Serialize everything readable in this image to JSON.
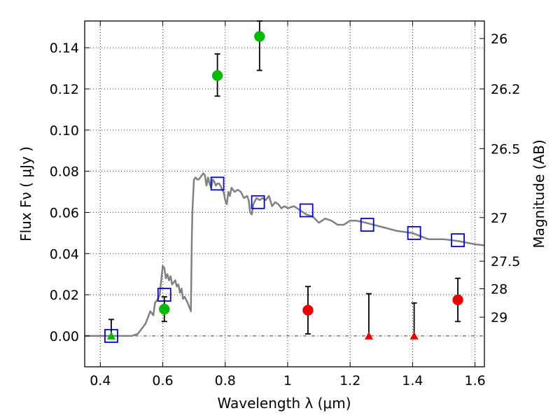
{
  "chart_data": {
    "type": "scatter",
    "title": "",
    "xlabel": "Wavelength  λ (μm)",
    "ylabel": "Flux  Fν  ( μJy )",
    "y2label": "Magnitude (AB)",
    "xlim": [
      0.35,
      1.63
    ],
    "ylim": [
      -0.015,
      0.153
    ],
    "grid": true,
    "grid_style": "dotted",
    "xticks": [
      {
        "value": 0.4,
        "label": "0.4"
      },
      {
        "value": 0.6,
        "label": "0.6"
      },
      {
        "value": 0.8,
        "label": "0.8"
      },
      {
        "value": 1.0,
        "label": "1"
      },
      {
        "value": 1.2,
        "label": "1.2"
      },
      {
        "value": 1.4,
        "label": "1.4"
      },
      {
        "value": 1.6,
        "label": "1.6"
      }
    ],
    "yticks": [
      {
        "value": 0.0,
        "label": "0.00"
      },
      {
        "value": 0.02,
        "label": "0.02"
      },
      {
        "value": 0.04,
        "label": "0.04"
      },
      {
        "value": 0.06,
        "label": "0.06"
      },
      {
        "value": 0.08,
        "label": "0.08"
      },
      {
        "value": 0.1,
        "label": "0.10"
      },
      {
        "value": 0.12,
        "label": "0.12"
      },
      {
        "value": 0.14,
        "label": "0.14"
      }
    ],
    "y2ticks": [
      {
        "flux": 0.1445,
        "label": "26"
      },
      {
        "flux": 0.12,
        "label": "26.2"
      },
      {
        "flux": 0.091,
        "label": "26.5"
      },
      {
        "flux": 0.0575,
        "label": "27"
      },
      {
        "flux": 0.0363,
        "label": "27.5"
      },
      {
        "flux": 0.0229,
        "label": "28"
      },
      {
        "flux": 0.0091,
        "label": "29"
      }
    ],
    "series": [
      {
        "marker": "line",
        "color": "#808080",
        "points": [
          [
            0.35,
            0.0
          ],
          [
            0.5,
            0.0
          ],
          [
            0.52,
            0.001
          ],
          [
            0.545,
            0.006
          ],
          [
            0.56,
            0.012
          ],
          [
            0.57,
            0.01
          ],
          [
            0.575,
            0.016
          ],
          [
            0.585,
            0.018
          ],
          [
            0.59,
            0.02
          ],
          [
            0.595,
            0.027
          ],
          [
            0.6,
            0.034
          ],
          [
            0.605,
            0.033
          ],
          [
            0.61,
            0.028
          ],
          [
            0.615,
            0.03
          ],
          [
            0.62,
            0.027
          ],
          [
            0.625,
            0.029
          ],
          [
            0.63,
            0.025
          ],
          [
            0.64,
            0.027
          ],
          [
            0.645,
            0.024
          ],
          [
            0.65,
            0.025
          ],
          [
            0.655,
            0.021
          ],
          [
            0.66,
            0.023
          ],
          [
            0.665,
            0.018
          ],
          [
            0.67,
            0.019
          ],
          [
            0.68,
            0.016
          ],
          [
            0.69,
            0.012
          ],
          [
            0.693,
            0.047
          ],
          [
            0.695,
            0.061
          ],
          [
            0.7,
            0.076
          ],
          [
            0.705,
            0.077
          ],
          [
            0.71,
            0.076
          ],
          [
            0.715,
            0.076
          ],
          [
            0.72,
            0.077
          ],
          [
            0.725,
            0.078
          ],
          [
            0.73,
            0.079
          ],
          [
            0.735,
            0.078
          ],
          [
            0.74,
            0.073
          ],
          [
            0.745,
            0.077
          ],
          [
            0.75,
            0.074
          ],
          [
            0.755,
            0.072
          ],
          [
            0.76,
            0.076
          ],
          [
            0.765,
            0.075
          ],
          [
            0.77,
            0.073
          ],
          [
            0.775,
            0.074
          ],
          [
            0.78,
            0.074
          ],
          [
            0.785,
            0.073
          ],
          [
            0.79,
            0.071
          ],
          [
            0.795,
            0.07
          ],
          [
            0.8,
            0.066
          ],
          [
            0.805,
            0.064
          ],
          [
            0.81,
            0.07
          ],
          [
            0.815,
            0.068
          ],
          [
            0.82,
            0.072
          ],
          [
            0.83,
            0.07
          ],
          [
            0.84,
            0.071
          ],
          [
            0.85,
            0.07
          ],
          [
            0.86,
            0.067
          ],
          [
            0.87,
            0.068
          ],
          [
            0.875,
            0.066
          ],
          [
            0.88,
            0.06
          ],
          [
            0.885,
            0.059
          ],
          [
            0.89,
            0.064
          ],
          [
            0.9,
            0.067
          ],
          [
            0.91,
            0.066
          ],
          [
            0.92,
            0.067
          ],
          [
            0.93,
            0.066
          ],
          [
            0.94,
            0.068
          ],
          [
            0.95,
            0.063
          ],
          [
            0.96,
            0.065
          ],
          [
            0.97,
            0.064
          ],
          [
            0.98,
            0.062
          ],
          [
            0.99,
            0.063
          ],
          [
            1.0,
            0.062
          ],
          [
            1.02,
            0.063
          ],
          [
            1.04,
            0.061
          ],
          [
            1.06,
            0.059
          ],
          [
            1.08,
            0.058
          ],
          [
            1.1,
            0.055
          ],
          [
            1.12,
            0.057
          ],
          [
            1.14,
            0.056
          ],
          [
            1.16,
            0.054
          ],
          [
            1.18,
            0.054
          ],
          [
            1.2,
            0.056
          ],
          [
            1.22,
            0.056
          ],
          [
            1.25,
            0.055
          ],
          [
            1.3,
            0.053
          ],
          [
            1.35,
            0.051
          ],
          [
            1.4,
            0.05
          ],
          [
            1.45,
            0.047
          ],
          [
            1.5,
            0.047
          ],
          [
            1.55,
            0.046
          ],
          [
            1.6,
            0.0445
          ],
          [
            1.63,
            0.044
          ]
        ]
      },
      {
        "marker": "open-square",
        "color": "#0000ee",
        "points": [
          [
            0.435,
            0.0
          ],
          [
            0.605,
            0.02
          ],
          [
            0.775,
            0.074
          ],
          [
            0.905,
            0.065
          ],
          [
            1.06,
            0.061
          ],
          [
            1.255,
            0.054
          ],
          [
            1.405,
            0.05
          ],
          [
            1.545,
            0.0465
          ]
        ]
      },
      {
        "marker": "circle",
        "color": "#00bb00",
        "points": [
          {
            "x": 0.605,
            "y": 0.013,
            "yerr_low": 0.007,
            "yerr_high": 0.019
          },
          {
            "x": 0.775,
            "y": 0.1265,
            "yerr_low": 0.1165,
            "yerr_high": 0.137
          },
          {
            "x": 0.91,
            "y": 0.1455,
            "yerr_low": 0.129,
            "yerr_high": 0.153
          }
        ]
      },
      {
        "marker": "triangle",
        "color": "#00bb00",
        "points": [
          {
            "x": 0.435,
            "y": 0.0,
            "yerr_low": 0.0,
            "yerr_high": 0.008
          }
        ]
      },
      {
        "marker": "circle",
        "color": "#ee0000",
        "points": [
          {
            "x": 1.065,
            "y": 0.0125,
            "yerr_low": 0.001,
            "yerr_high": 0.024
          },
          {
            "x": 1.545,
            "y": 0.0175,
            "yerr_low": 0.007,
            "yerr_high": 0.028
          }
        ]
      },
      {
        "marker": "triangle",
        "color": "#ee0000",
        "points": [
          {
            "x": 1.26,
            "y": 0.0,
            "yerr_low": 0.0,
            "yerr_high": 0.0205
          },
          {
            "x": 1.405,
            "y": 0.0,
            "yerr_low": 0.0,
            "yerr_high": 0.016
          }
        ]
      }
    ]
  }
}
